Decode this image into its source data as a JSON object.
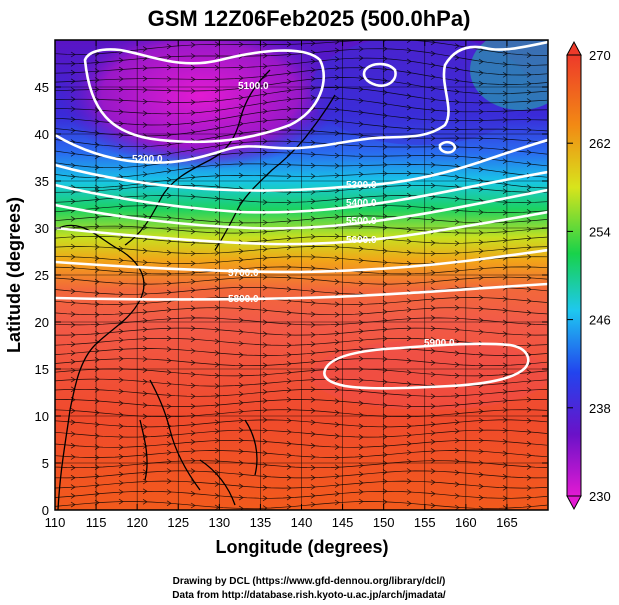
{
  "title": "GSM 12Z06Feb2025 (500.0hPa)",
  "xaxis": {
    "label": "Longitude (degrees)",
    "range": [
      110,
      170
    ],
    "ticks": [
      "110",
      "115",
      "120",
      "125",
      "130",
      "135",
      "140",
      "145",
      "150",
      "155",
      "160",
      "165"
    ]
  },
  "yaxis": {
    "label": "Latitude  (degrees)",
    "range": [
      0,
      50
    ],
    "ticks": [
      "0",
      "5",
      "10",
      "15",
      "20",
      "25",
      "30",
      "35",
      "40",
      "45"
    ]
  },
  "colorbar": {
    "ticks": [
      "230",
      "238",
      "246",
      "254",
      "262",
      "270"
    ],
    "range": [
      230,
      270
    ],
    "colors": [
      "#e21ad2",
      "#6a12c8",
      "#2244ee",
      "#1ec8f0",
      "#18d24a",
      "#d8e41c",
      "#f28a14",
      "#ee3a2a"
    ]
  },
  "contours": {
    "labels": [
      "5100.0",
      "5200.0",
      "5300.0",
      "5400.0",
      "5500.0",
      "5600.0",
      "5700.0",
      "5800.0",
      "5900.0"
    ]
  },
  "credits": {
    "drawing": "Drawing by DCL (https://www.gfd-dennou.org/library/dcl/)",
    "data": "Data from http://database.rish.kyoto-u.ac.jp/arch/jmadata/"
  },
  "chart_data": {
    "type": "heatmap",
    "title": "GSM 12Z06Feb2025 (500.0hPa)",
    "xlabel": "Longitude (degrees)",
    "ylabel": "Latitude  (degrees)",
    "xlim": [
      110,
      170
    ],
    "ylim": [
      0,
      50
    ],
    "colorbar_range": [
      230,
      270
    ],
    "variable_note": "temperature shaded, geopotential height contours, wind streamlines",
    "contour_levels": [
      5100,
      5200,
      5300,
      5400,
      5500,
      5600,
      5700,
      5800,
      5900
    ]
  }
}
